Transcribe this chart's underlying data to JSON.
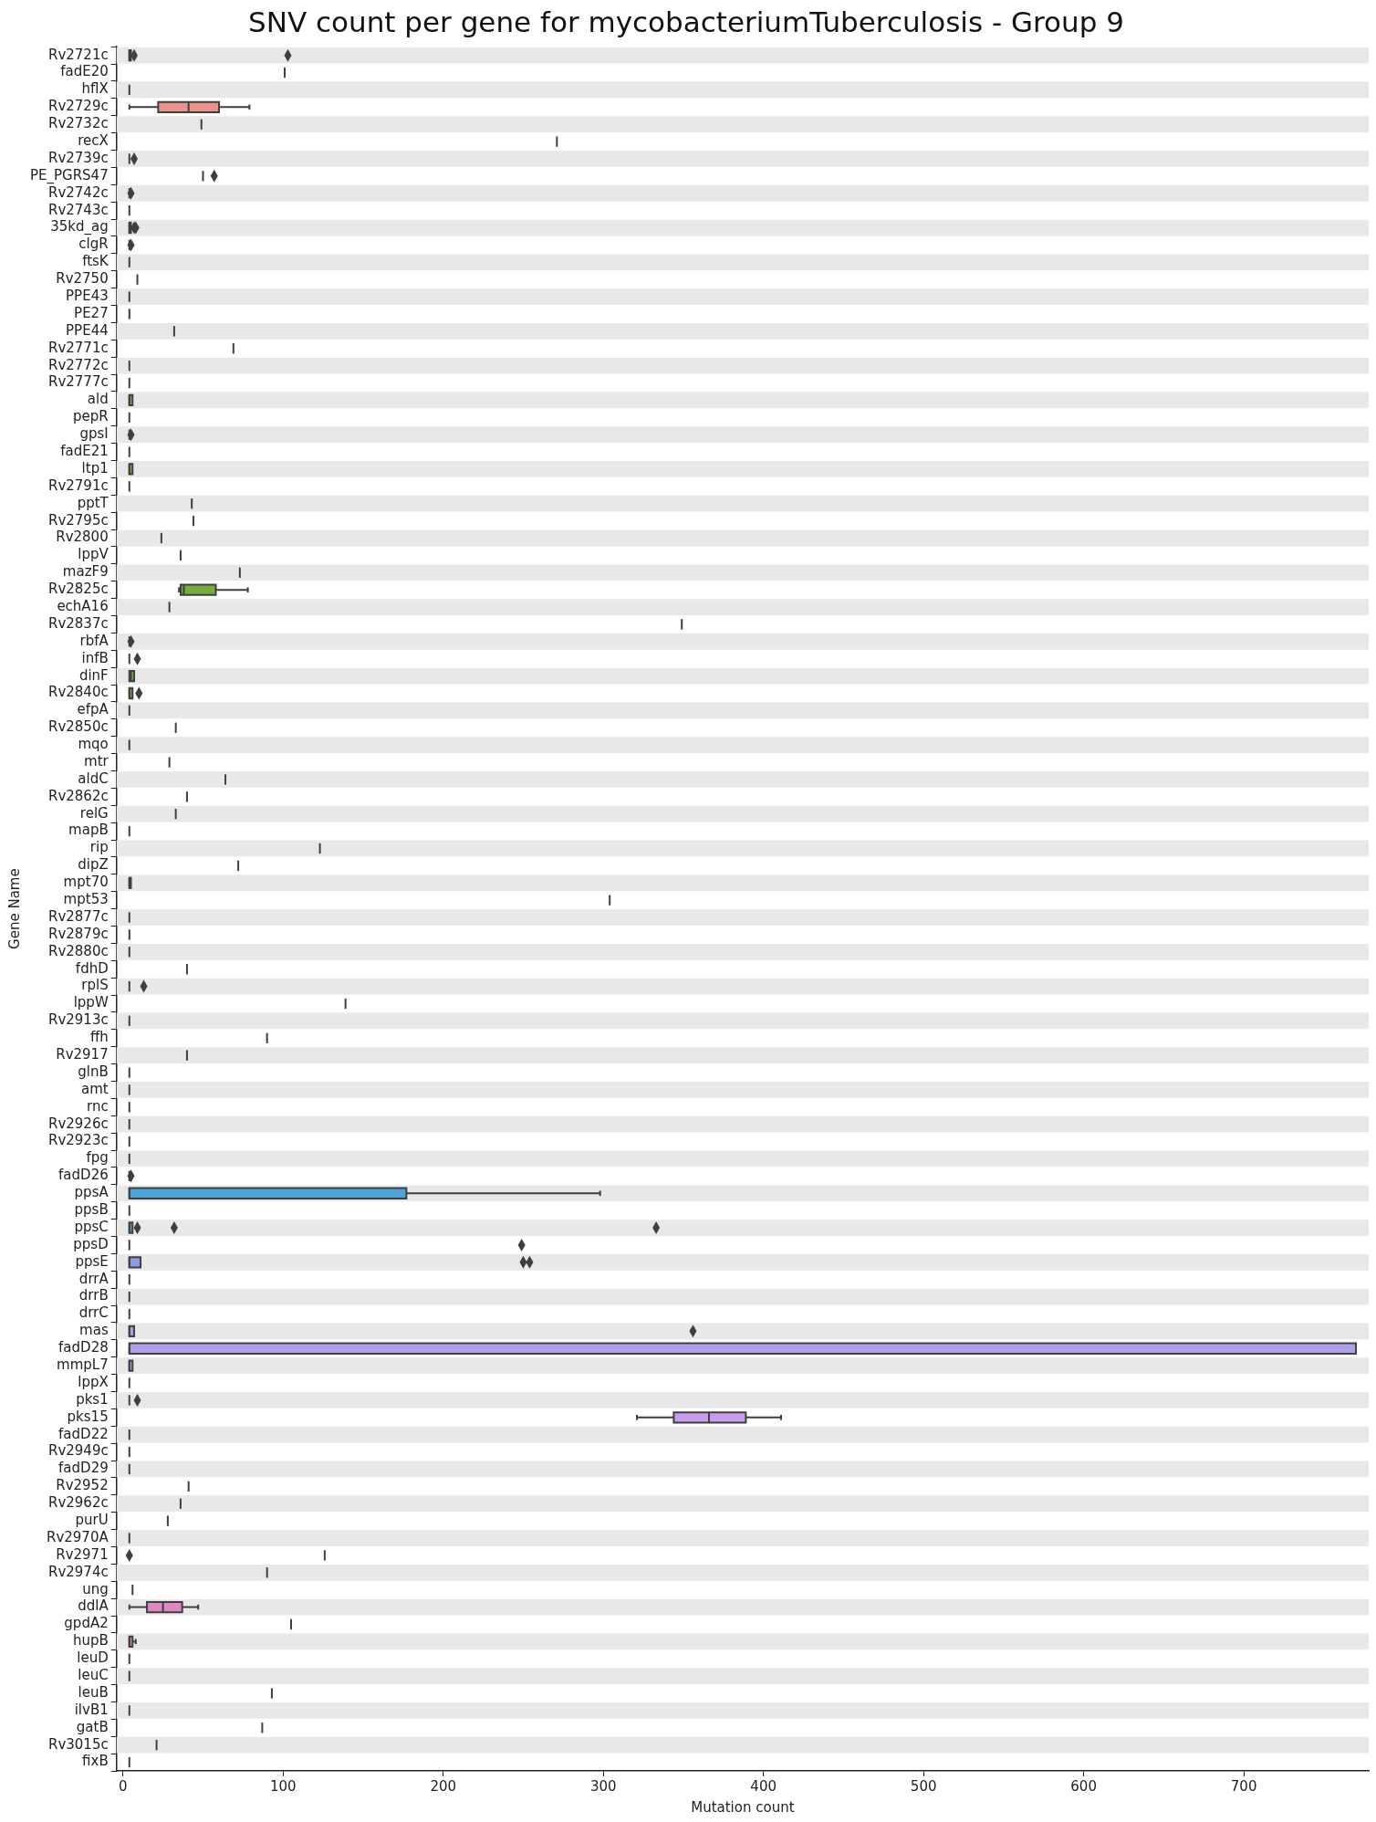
{
  "chart_data": {
    "type": "box",
    "orientation": "horizontal",
    "title": "SNV count per gene for mycobacteriumTuberculosis - Group 9",
    "xlabel": "Mutation count",
    "ylabel": "Gene Name",
    "categories": [
      "Rv2721c",
      "fadE20",
      "hflX",
      "Rv2729c",
      "Rv2732c",
      "recX",
      "Rv2739c",
      "PE_PGRS47",
      "Rv2742c",
      "Rv2743c",
      "35kd_ag",
      "clgR",
      "ftsK",
      "Rv2750",
      "PPE43",
      "PE27",
      "PPE44",
      "Rv2771c",
      "Rv2772c",
      "Rv2777c",
      "ald",
      "pepR",
      "gpsI",
      "fadE21",
      "ltp1",
      "Rv2791c",
      "pptT",
      "Rv2795c",
      "Rv2800",
      "lppV",
      "mazF9",
      "Rv2825c",
      "echA16",
      "Rv2837c",
      "rbfA",
      "infB",
      "dinF",
      "Rv2840c",
      "efpA",
      "Rv2850c",
      "mqo",
      "mtr",
      "aldC",
      "Rv2862c",
      "relG",
      "mapB",
      "rip",
      "dipZ",
      "mpt70",
      "mpt53",
      "Rv2877c",
      "Rv2879c",
      "Rv2880c",
      "fdhD",
      "rplS",
      "lppW",
      "Rv2913c",
      "ffh",
      "Rv2917",
      "glnB",
      "amt",
      "rnc",
      "Rv2926c",
      "Rv2923c",
      "fpg",
      "fadD26",
      "ppsA",
      "ppsB",
      "ppsC",
      "ppsD",
      "ppsE",
      "drrA",
      "drrB",
      "drrC",
      "mas",
      "fadD28",
      "mmpL7",
      "lppX",
      "pks1",
      "pks15",
      "fadD22",
      "Rv2949c",
      "fadD29",
      "Rv2952",
      "Rv2962c",
      "purU",
      "Rv2970A",
      "Rv2971",
      "Rv2974c",
      "ung",
      "ddlA",
      "gpdA2",
      "hupB",
      "leuD",
      "leuC",
      "leuB",
      "ilvB1",
      "gatB",
      "Rv3015c",
      "fixB"
    ],
    "boxes": [
      {
        "low": 4,
        "q1": 4,
        "median": 4,
        "q3": 5,
        "high": 5,
        "outliers": [
          7,
          103
        ]
      },
      {
        "low": 101,
        "q1": 101,
        "median": 101,
        "q3": 101,
        "high": 101
      },
      {
        "low": 4,
        "q1": 4,
        "median": 4,
        "q3": 4,
        "high": 4
      },
      {
        "low": 4,
        "q1": 22,
        "median": 41,
        "q3": 60,
        "high": 79
      },
      {
        "low": 49,
        "q1": 49,
        "median": 49,
        "q3": 49,
        "high": 49
      },
      {
        "low": 271,
        "q1": 271,
        "median": 271,
        "q3": 271,
        "high": 271
      },
      {
        "low": 4,
        "q1": 4,
        "median": 4,
        "q3": 4,
        "high": 4,
        "outliers": [
          7
        ]
      },
      {
        "low": 50,
        "q1": 50,
        "median": 50,
        "q3": 50,
        "high": 50,
        "outliers": [
          57
        ]
      },
      {
        "low": 4,
        "q1": 4,
        "median": 4,
        "q3": 4,
        "high": 4,
        "outliers": [
          5
        ]
      },
      {
        "low": 4,
        "q1": 4,
        "median": 4,
        "q3": 4,
        "high": 4
      },
      {
        "low": 4,
        "q1": 4,
        "median": 4,
        "q3": 5,
        "high": 5,
        "outliers": [
          7,
          8
        ]
      },
      {
        "low": 4,
        "q1": 4,
        "median": 4,
        "q3": 4,
        "high": 4,
        "outliers": [
          5
        ]
      },
      {
        "low": 4,
        "q1": 4,
        "median": 4,
        "q3": 4,
        "high": 4
      },
      {
        "low": 9,
        "q1": 9,
        "median": 9,
        "q3": 9,
        "high": 9
      },
      {
        "low": 4,
        "q1": 4,
        "median": 4,
        "q3": 4,
        "high": 4
      },
      {
        "low": 4,
        "q1": 4,
        "median": 4,
        "q3": 4,
        "high": 4
      },
      {
        "low": 32,
        "q1": 32,
        "median": 32,
        "q3": 32,
        "high": 32
      },
      {
        "low": 69,
        "q1": 69,
        "median": 69,
        "q3": 69,
        "high": 69
      },
      {
        "low": 4,
        "q1": 4,
        "median": 4,
        "q3": 4,
        "high": 4
      },
      {
        "low": 4,
        "q1": 4,
        "median": 4,
        "q3": 4,
        "high": 4
      },
      {
        "low": 4,
        "q1": 4,
        "median": 4,
        "q3": 6,
        "high": 6
      },
      {
        "low": 4,
        "q1": 4,
        "median": 4,
        "q3": 4,
        "high": 4
      },
      {
        "low": 4,
        "q1": 4,
        "median": 4,
        "q3": 4,
        "high": 4,
        "outliers": [
          5
        ]
      },
      {
        "low": 4,
        "q1": 4,
        "median": 4,
        "q3": 4,
        "high": 4
      },
      {
        "low": 4,
        "q1": 4,
        "median": 4,
        "q3": 6,
        "high": 6
      },
      {
        "low": 4,
        "q1": 4,
        "median": 4,
        "q3": 4,
        "high": 4
      },
      {
        "low": 43,
        "q1": 43,
        "median": 43,
        "q3": 43,
        "high": 43
      },
      {
        "low": 44,
        "q1": 44,
        "median": 44,
        "q3": 44,
        "high": 44
      },
      {
        "low": 24,
        "q1": 24,
        "median": 24,
        "q3": 24,
        "high": 24
      },
      {
        "low": 36,
        "q1": 36,
        "median": 36,
        "q3": 36,
        "high": 36
      },
      {
        "low": 73,
        "q1": 73,
        "median": 73,
        "q3": 73,
        "high": 73
      },
      {
        "low": 35,
        "q1": 36,
        "median": 38,
        "q3": 58,
        "high": 78
      },
      {
        "low": 29,
        "q1": 29,
        "median": 29,
        "q3": 29,
        "high": 29
      },
      {
        "low": 349,
        "q1": 349,
        "median": 349,
        "q3": 349,
        "high": 349
      },
      {
        "low": 4,
        "q1": 4,
        "median": 4,
        "q3": 4,
        "high": 4,
        "outliers": [
          5
        ]
      },
      {
        "low": 4,
        "q1": 4,
        "median": 4,
        "q3": 4,
        "high": 4,
        "outliers": [
          9
        ]
      },
      {
        "low": 4,
        "q1": 4,
        "median": 5,
        "q3": 7,
        "high": 7
      },
      {
        "low": 4,
        "q1": 4,
        "median": 4,
        "q3": 6,
        "high": 6,
        "outliers": [
          10
        ]
      },
      {
        "low": 4,
        "q1": 4,
        "median": 4,
        "q3": 4,
        "high": 4
      },
      {
        "low": 33,
        "q1": 33,
        "median": 33,
        "q3": 33,
        "high": 33
      },
      {
        "low": 4,
        "q1": 4,
        "median": 4,
        "q3": 4,
        "high": 4
      },
      {
        "low": 29,
        "q1": 29,
        "median": 29,
        "q3": 29,
        "high": 29
      },
      {
        "low": 64,
        "q1": 64,
        "median": 64,
        "q3": 64,
        "high": 64
      },
      {
        "low": 40,
        "q1": 40,
        "median": 40,
        "q3": 40,
        "high": 40
      },
      {
        "low": 33,
        "q1": 33,
        "median": 33,
        "q3": 33,
        "high": 33
      },
      {
        "low": 4,
        "q1": 4,
        "median": 4,
        "q3": 4,
        "high": 4
      },
      {
        "low": 123,
        "q1": 123,
        "median": 123,
        "q3": 123,
        "high": 123
      },
      {
        "low": 72,
        "q1": 72,
        "median": 72,
        "q3": 72,
        "high": 72
      },
      {
        "low": 4,
        "q1": 4,
        "median": 4,
        "q3": 5,
        "high": 5
      },
      {
        "low": 304,
        "q1": 304,
        "median": 304,
        "q3": 304,
        "high": 304
      },
      {
        "low": 4,
        "q1": 4,
        "median": 4,
        "q3": 4,
        "high": 4
      },
      {
        "low": 4,
        "q1": 4,
        "median": 4,
        "q3": 4,
        "high": 4
      },
      {
        "low": 4,
        "q1": 4,
        "median": 4,
        "q3": 4,
        "high": 4
      },
      {
        "low": 40,
        "q1": 40,
        "median": 40,
        "q3": 40,
        "high": 40
      },
      {
        "low": 4,
        "q1": 4,
        "median": 4,
        "q3": 4,
        "high": 4,
        "outliers": [
          13
        ]
      },
      {
        "low": 139,
        "q1": 139,
        "median": 139,
        "q3": 139,
        "high": 139
      },
      {
        "low": 4,
        "q1": 4,
        "median": 4,
        "q3": 4,
        "high": 4
      },
      {
        "low": 90,
        "q1": 90,
        "median": 90,
        "q3": 90,
        "high": 90
      },
      {
        "low": 40,
        "q1": 40,
        "median": 40,
        "q3": 40,
        "high": 40
      },
      {
        "low": 4,
        "q1": 4,
        "median": 4,
        "q3": 4,
        "high": 4
      },
      {
        "low": 4,
        "q1": 4,
        "median": 4,
        "q3": 4,
        "high": 4
      },
      {
        "low": 4,
        "q1": 4,
        "median": 4,
        "q3": 4,
        "high": 4
      },
      {
        "low": 4,
        "q1": 4,
        "median": 4,
        "q3": 4,
        "high": 4
      },
      {
        "low": 4,
        "q1": 4,
        "median": 4,
        "q3": 4,
        "high": 4
      },
      {
        "low": 4,
        "q1": 4,
        "median": 4,
        "q3": 4,
        "high": 4
      },
      {
        "low": 4,
        "q1": 4,
        "median": 4,
        "q3": 4,
        "high": 4,
        "outliers": [
          5
        ]
      },
      {
        "low": 4,
        "q1": 4,
        "median": 4,
        "q3": 177,
        "high": 298
      },
      {
        "low": 4,
        "q1": 4,
        "median": 4,
        "q3": 4,
        "high": 4
      },
      {
        "low": 4,
        "q1": 4,
        "median": 4,
        "q3": 6,
        "high": 6,
        "outliers": [
          9,
          32,
          333
        ]
      },
      {
        "low": 4,
        "q1": 4,
        "median": 4,
        "q3": 4,
        "high": 4,
        "outliers": [
          249
        ]
      },
      {
        "low": 4,
        "q1": 4,
        "median": 4,
        "q3": 11,
        "high": 11,
        "outliers": [
          250,
          254
        ]
      },
      {
        "low": 4,
        "q1": 4,
        "median": 4,
        "q3": 4,
        "high": 4
      },
      {
        "low": 4,
        "q1": 4,
        "median": 4,
        "q3": 4,
        "high": 4
      },
      {
        "low": 4,
        "q1": 4,
        "median": 4,
        "q3": 4,
        "high": 4
      },
      {
        "low": 4,
        "q1": 4,
        "median": 4,
        "q3": 7,
        "high": 7,
        "outliers": [
          356
        ]
      },
      {
        "low": 4,
        "q1": 4,
        "median": 4,
        "q3": 770,
        "high": 770
      },
      {
        "low": 4,
        "q1": 4,
        "median": 4,
        "q3": 6,
        "high": 6
      },
      {
        "low": 4,
        "q1": 4,
        "median": 4,
        "q3": 4,
        "high": 4
      },
      {
        "low": 4,
        "q1": 4,
        "median": 4,
        "q3": 4,
        "high": 4,
        "outliers": [
          9
        ]
      },
      {
        "low": 321,
        "q1": 344,
        "median": 366,
        "q3": 389,
        "high": 411
      },
      {
        "low": 4,
        "q1": 4,
        "median": 4,
        "q3": 4,
        "high": 4
      },
      {
        "low": 4,
        "q1": 4,
        "median": 4,
        "q3": 4,
        "high": 4
      },
      {
        "low": 4,
        "q1": 4,
        "median": 4,
        "q3": 4,
        "high": 4
      },
      {
        "low": 41,
        "q1": 41,
        "median": 41,
        "q3": 41,
        "high": 41
      },
      {
        "low": 36,
        "q1": 36,
        "median": 36,
        "q3": 36,
        "high": 36
      },
      {
        "low": 28,
        "q1": 28,
        "median": 28,
        "q3": 28,
        "high": 28
      },
      {
        "low": 4,
        "q1": 4,
        "median": 4,
        "q3": 4,
        "high": 4
      },
      {
        "low": 126,
        "q1": 126,
        "median": 126,
        "q3": 126,
        "high": 126,
        "outliers": [
          4
        ]
      },
      {
        "low": 90,
        "q1": 90,
        "median": 90,
        "q3": 90,
        "high": 90
      },
      {
        "low": 6,
        "q1": 6,
        "median": 6,
        "q3": 6,
        "high": 6
      },
      {
        "low": 4,
        "q1": 15,
        "median": 25,
        "q3": 37,
        "high": 47
      },
      {
        "low": 105,
        "q1": 105,
        "median": 105,
        "q3": 105,
        "high": 105
      },
      {
        "low": 4,
        "q1": 4,
        "median": 4,
        "q3": 6,
        "high": 8
      },
      {
        "low": 4,
        "q1": 4,
        "median": 4,
        "q3": 4,
        "high": 4
      },
      {
        "low": 4,
        "q1": 4,
        "median": 4,
        "q3": 4,
        "high": 4
      },
      {
        "low": 93,
        "q1": 93,
        "median": 93,
        "q3": 93,
        "high": 93
      },
      {
        "low": 4,
        "q1": 4,
        "median": 4,
        "q3": 4,
        "high": 4
      },
      {
        "low": 87,
        "q1": 87,
        "median": 87,
        "q3": 87,
        "high": 87
      },
      {
        "low": 21,
        "q1": 21,
        "median": 21,
        "q3": 21,
        "high": 21
      },
      {
        "low": 4,
        "q1": 4,
        "median": 4,
        "q3": 4,
        "high": 4
      }
    ],
    "colors": [
      "#e8928a",
      "#3f3f3f",
      "#3f3f3f",
      "#e8928a",
      "#3f3f3f",
      "#3f3f3f",
      "#3f3f3f",
      "#3f3f3f",
      "#3f3f3f",
      "#3f3f3f",
      "#d99a4a",
      "#3f3f3f",
      "#3f3f3f",
      "#3f3f3f",
      "#3f3f3f",
      "#3f3f3f",
      "#3f3f3f",
      "#3f3f3f",
      "#3f3f3f",
      "#3f3f3f",
      "#aea43a",
      "#3f3f3f",
      "#3f3f3f",
      "#3f3f3f",
      "#aea43a",
      "#3f3f3f",
      "#3f3f3f",
      "#3f3f3f",
      "#3f3f3f",
      "#3f3f3f",
      "#3f3f3f",
      "#76ad3e",
      "#3f3f3f",
      "#3f3f3f",
      "#3f3f3f",
      "#3f3f3f",
      "#76ad3e",
      "#76ad3e",
      "#3f3f3f",
      "#3f3f3f",
      "#3f3f3f",
      "#3f3f3f",
      "#3f3f3f",
      "#3f3f3f",
      "#3f3f3f",
      "#3f3f3f",
      "#3f3f3f",
      "#3f3f3f",
      "#3fb27a",
      "#3f3f3f",
      "#3f3f3f",
      "#3f3f3f",
      "#3f3f3f",
      "#3f3f3f",
      "#3f3f3f",
      "#3f3f3f",
      "#3f3f3f",
      "#3f3f3f",
      "#3f3f3f",
      "#3f3f3f",
      "#3f3f3f",
      "#3f3f3f",
      "#3f3f3f",
      "#3f3f3f",
      "#3f3f3f",
      "#3f3f3f",
      "#4ea3d8",
      "#3f3f3f",
      "#4ea3d8",
      "#3f3f3f",
      "#8d9ce6",
      "#3f3f3f",
      "#3f3f3f",
      "#3f3f3f",
      "#a9a0ec",
      "#b0a0ec",
      "#b0a0ec",
      "#3f3f3f",
      "#3f3f3f",
      "#c89cec",
      "#3f3f3f",
      "#3f3f3f",
      "#3f3f3f",
      "#3f3f3f",
      "#3f3f3f",
      "#3f3f3f",
      "#3f3f3f",
      "#3f3f3f",
      "#3f3f3f",
      "#3f3f3f",
      "#e087c4",
      "#3f3f3f",
      "#e087c4",
      "#3f3f3f",
      "#3f3f3f",
      "#3f3f3f",
      "#3f3f3f",
      "#3f3f3f",
      "#3f3f3f",
      "#3f3f3f"
    ],
    "xlim": [
      -4,
      778
    ],
    "xticks": [
      0,
      100,
      200,
      300,
      400,
      500,
      600,
      700
    ],
    "legend": false
  }
}
